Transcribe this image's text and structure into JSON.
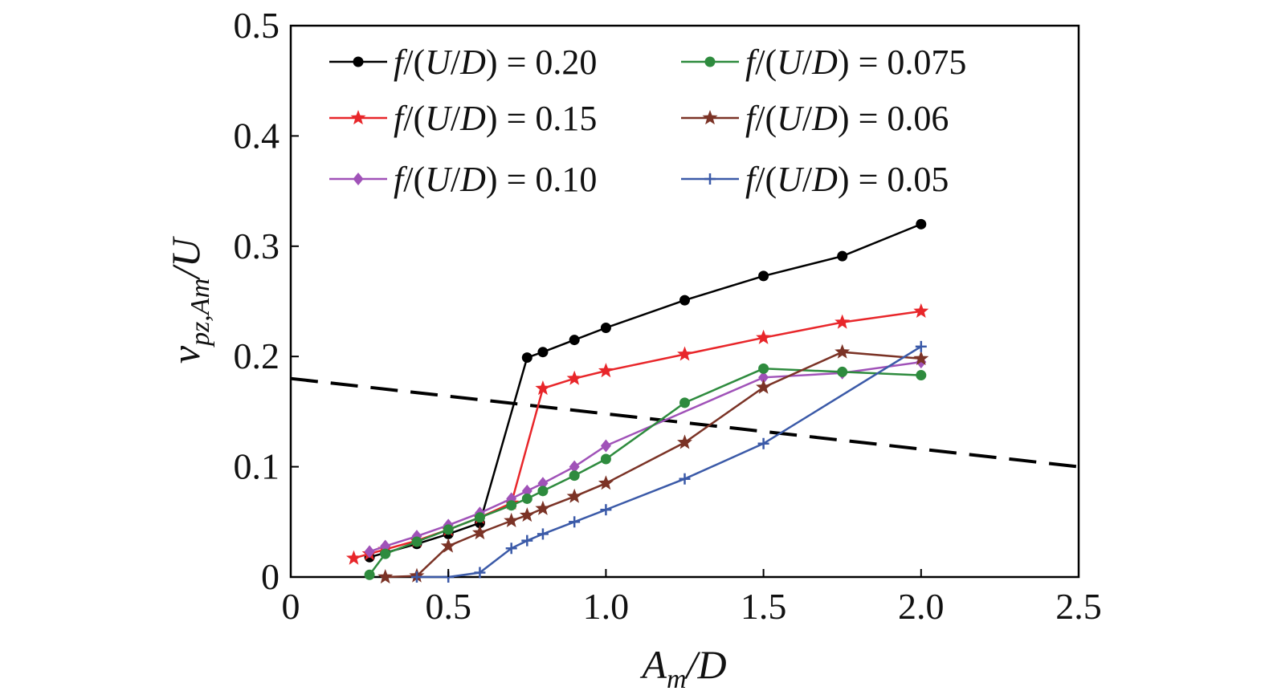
{
  "chart_data": {
    "type": "line",
    "xlabel": "A_m/D",
    "ylabel": "v_pz,Am/U",
    "xlim": [
      0,
      2.5
    ],
    "ylim": [
      0,
      0.5
    ],
    "x_ticks": [
      "0",
      "0.5",
      "1.0",
      "1.5",
      "2.0",
      "2.5"
    ],
    "x_tick_values": [
      0,
      0.5,
      1.0,
      1.5,
      2.0,
      2.5
    ],
    "y_ticks": [
      "0",
      "0.1",
      "0.2",
      "0.3",
      "0.4",
      "0.5"
    ],
    "y_tick_values": [
      0,
      0.1,
      0.2,
      0.3,
      0.4,
      0.5
    ],
    "grid": false,
    "legend_position": "top",
    "series": [
      {
        "name": "f/(U/D) = 0.20",
        "color": "#000000",
        "marker": "circle",
        "x": [
          0.25,
          0.3,
          0.4,
          0.5,
          0.6,
          0.75,
          0.8,
          0.9,
          1.0,
          1.25,
          1.5,
          1.75,
          2.0
        ],
        "y": [
          0.018,
          0.022,
          0.03,
          0.039,
          0.049,
          0.199,
          0.204,
          0.215,
          0.226,
          0.251,
          0.273,
          0.291,
          0.32
        ]
      },
      {
        "name": "f/(U/D) = 0.15",
        "color": "#e8262a",
        "marker": "star",
        "x": [
          0.2,
          0.25,
          0.3,
          0.4,
          0.5,
          0.6,
          0.7,
          0.8,
          0.9,
          1.0,
          1.25,
          1.5,
          1.75,
          2.0
        ],
        "y": [
          0.017,
          0.021,
          0.025,
          0.033,
          0.043,
          0.054,
          0.067,
          0.171,
          0.18,
          0.187,
          0.202,
          0.217,
          0.231,
          0.241
        ]
      },
      {
        "name": "f/(U/D) = 0.10",
        "color": "#a052b8",
        "marker": "diamond",
        "x": [
          0.25,
          0.3,
          0.4,
          0.5,
          0.6,
          0.7,
          0.75,
          0.8,
          0.9,
          1.0,
          1.5,
          1.75,
          2.0
        ],
        "y": [
          0.023,
          0.028,
          0.037,
          0.047,
          0.058,
          0.071,
          0.078,
          0.085,
          0.1,
          0.119,
          0.181,
          0.185,
          0.195
        ]
      },
      {
        "name": "f/(U/D) = 0.075",
        "color": "#2e8b3e",
        "marker": "circle",
        "x": [
          0.25,
          0.3,
          0.4,
          0.5,
          0.6,
          0.7,
          0.75,
          0.8,
          0.9,
          1.0,
          1.25,
          1.5,
          1.75,
          2.0
        ],
        "y": [
          0.002,
          0.021,
          0.032,
          0.043,
          0.054,
          0.065,
          0.071,
          0.078,
          0.092,
          0.107,
          0.158,
          0.189,
          0.186,
          0.183
        ]
      },
      {
        "name": "f/(U/D) = 0.06",
        "color": "#7b3326",
        "marker": "star",
        "x": [
          0.3,
          0.4,
          0.5,
          0.6,
          0.7,
          0.75,
          0.8,
          0.9,
          1.0,
          1.25,
          1.5,
          1.75,
          2.0
        ],
        "y": [
          0.0,
          0.001,
          0.028,
          0.04,
          0.051,
          0.056,
          0.062,
          0.073,
          0.085,
          0.122,
          0.172,
          0.204,
          0.198
        ]
      },
      {
        "name": "f/(U/D) = 0.05",
        "color": "#3b5aa8",
        "marker": "plus",
        "x": [
          0.4,
          0.5,
          0.6,
          0.7,
          0.75,
          0.8,
          0.9,
          1.0,
          1.25,
          1.5,
          2.0
        ],
        "y": [
          0.0,
          0.0,
          0.004,
          0.026,
          0.033,
          0.039,
          0.05,
          0.061,
          0.089,
          0.121,
          0.209
        ]
      }
    ],
    "reference_line": {
      "style": "dashed",
      "color": "#000000",
      "x": [
        0,
        2.5
      ],
      "y": [
        0.18,
        0.1
      ]
    }
  }
}
